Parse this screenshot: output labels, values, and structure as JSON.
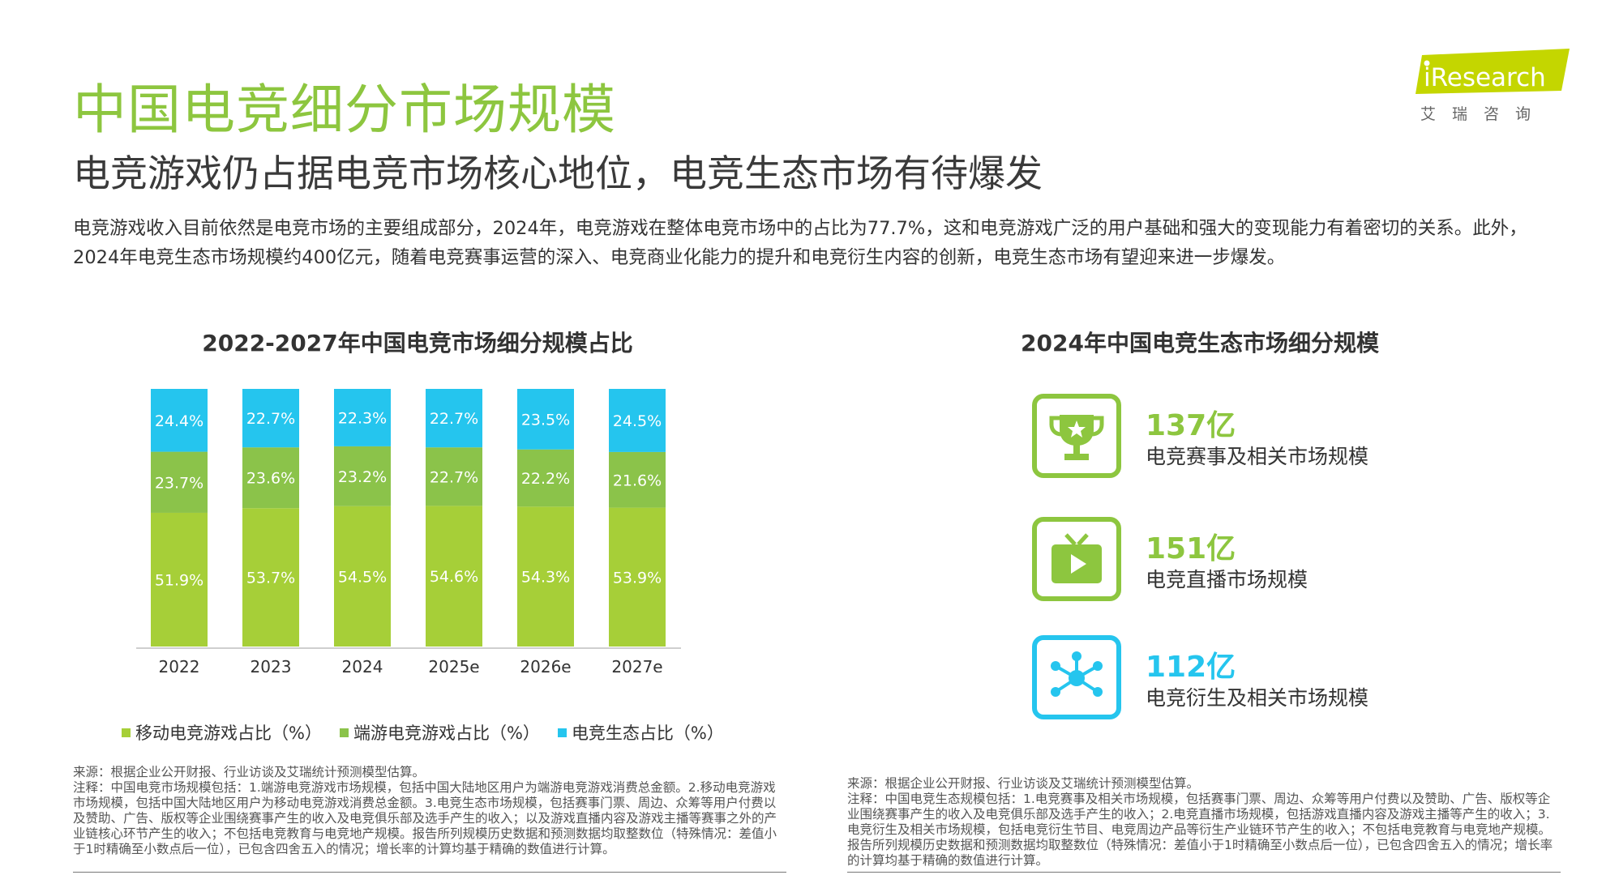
{
  "header": {
    "title": "中国电竞细分市场规模",
    "subtitle": "电竞游戏仍占据电竞市场核心地位，电竞生态市场有待爆发",
    "summary": "电竞游戏收入目前依然是电竞市场的主要组成部分，2024年，电竞游戏在整体电竞市场中的占比为77.7%，这和电竞游戏广泛的用户基础和强大的变现能力有着密切的关系。此外，2024年电竞生态市场规模约400亿元，随着电竞赛事运营的深入、电竞商业化能力的提升和电竞衍生内容的创新，电竞生态市场有望迎来进一步爆发。"
  },
  "logo": {
    "text": "iResearch",
    "cn": "艾瑞咨询",
    "color": "#c4d600"
  },
  "chart_data": {
    "type": "bar",
    "stacked": true,
    "title": "2022-2027年中国电竞市场细分规模占比",
    "categories": [
      "2022",
      "2023",
      "2024",
      "2025e",
      "2026e",
      "2027e"
    ],
    "series": [
      {
        "name": "移动电竞游戏占比（%）",
        "color": "#a6cf38",
        "values": [
          51.9,
          53.7,
          54.5,
          54.6,
          54.3,
          53.9
        ]
      },
      {
        "name": "端游电竞游戏占比（%）",
        "color": "#8bc34a",
        "values": [
          23.7,
          23.6,
          23.2,
          22.7,
          22.2,
          21.6
        ]
      },
      {
        "name": "电竞生态占比（%）",
        "color": "#25c5ee",
        "values": [
          24.4,
          22.7,
          22.3,
          22.7,
          23.5,
          24.5
        ]
      }
    ],
    "ylim": [
      0,
      100
    ],
    "legend": "bottom"
  },
  "eco": {
    "title": "2024年中国电竞生态市场细分规模",
    "items": [
      {
        "value": "137亿",
        "label": "电竞赛事及相关市场规模",
        "color": "#8dc63f",
        "icon": "trophy-icon"
      },
      {
        "value": "151亿",
        "label": "电竞直播市场规模",
        "color": "#8dc63f",
        "icon": "tv-play-icon"
      },
      {
        "value": "112亿",
        "label": "电竞衍生及相关市场规模",
        "color": "#25c5ee",
        "icon": "network-icon"
      }
    ]
  },
  "notes": {
    "left": "来源：根据企业公开财报、行业访谈及艾瑞统计预测模型估算。\n注释：中国电竞市场规模包括：1.端游电竞游戏市场规模，包括中国大陆地区用户为端游电竞游戏消费总金额。2.移动电竞游戏市场规模，包括中国大陆地区用户为移动电竞游戏消费总金额。3.电竞生态市场规模，包括赛事门票、周边、众筹等用户付费以及赞助、广告、版权等企业围绕赛事产生的收入及电竞俱乐部及选手产生的收入；以及游戏直播内容及游戏主播等赛事之外的产业链核心环节产生的收入；不包括电竞教育与电竞地产规模。报告所列规模历史数据和预测数据均取整数位（特殊情况：差值小于1时精确至小数点后一位），已包含四舍五入的情况；增长率的计算均基于精确的数值进行计算。",
    "right": "来源：根据企业公开财报、行业访谈及艾瑞统计预测模型估算。\n注释：中国电竞生态规模包括：1.电竞赛事及相关市场规模，包括赛事门票、周边、众筹等用户付费以及赞助、广告、版权等企业围绕赛事产生的收入及电竞俱乐部及选手产生的收入；2.电竞直播市场规模，包括游戏直播内容及游戏主播等产生的收入；3.电竞衍生及相关市场规模，包括电竞衍生节目、电竞周边产品等衍生产业链环节产生的收入；不包括电竞教育与电竞地产规模。报告所列规模历史数据和预测数据均取整数位（特殊情况：差值小于1时精确至小数点后一位），已包含四舍五入的情况；增长率的计算均基于精确的数值进行计算。"
  }
}
